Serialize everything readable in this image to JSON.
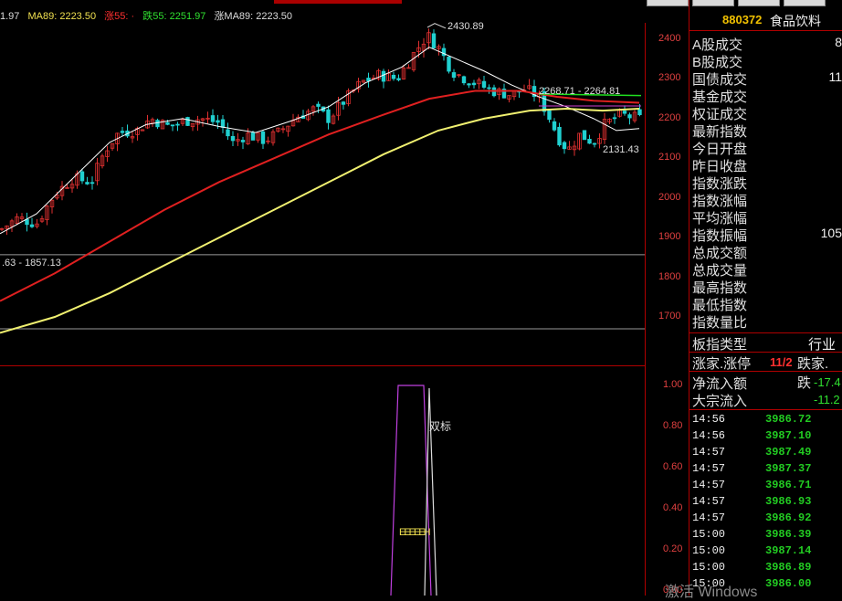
{
  "legend": {
    "ma_a": "1.97",
    "ma89": "MA89: 2223.50",
    "zhang55": "涨55: ·",
    "die55": "跌55: 2251.97",
    "zhang_ma89": "涨MA89: 2223.50"
  },
  "chart_data": {
    "type": "candlestick",
    "y_axis_ticks": [
      2400,
      2300,
      2200,
      2100,
      2000,
      1900,
      1800,
      1700
    ],
    "y_axis_labels": [
      "2400",
      "2300",
      "2200",
      "2100",
      "2000",
      "1900",
      "1800",
      "1700"
    ],
    "annotations": {
      "high": "2430.89",
      "range": "2268.71 - 2264.81",
      "low": "2131.43",
      "left_range": ".63 - 1857.13"
    },
    "colors": {
      "up": "#e03030",
      "down": "#20d0d0",
      "ma_short": "#ffffff",
      "ma_mid": "#e02020",
      "ma_long": "#f0f070",
      "green_line": "#20e020",
      "magenta_line": "#d040d0"
    }
  },
  "indicator": {
    "y_axis_labels": [
      "1.00",
      "0.80",
      "0.60",
      "0.40",
      "0.20",
      "0.00"
    ],
    "label_shuangbiao": "双标",
    "label_eee": "EEEEEH"
  },
  "panel": {
    "code": "880372",
    "name": "食品饮料",
    "rows": [
      {
        "label": "A股成交",
        "value": "8"
      },
      {
        "label": "B股成交",
        "value": ""
      },
      {
        "label": "国债成交",
        "value": "11"
      },
      {
        "label": "基金成交",
        "value": ""
      },
      {
        "label": "权证成交",
        "value": ""
      },
      {
        "label": "最新指数",
        "value": ""
      },
      {
        "label": "今日开盘",
        "value": ""
      },
      {
        "label": "昨日收盘",
        "value": ""
      },
      {
        "label": "指数涨跌",
        "value": ""
      },
      {
        "label": "指数涨幅",
        "value": ""
      },
      {
        "label": "平均涨幅",
        "value": ""
      },
      {
        "label": "指数振幅",
        "value": "105"
      },
      {
        "label": "总成交额",
        "value": ""
      },
      {
        "label": "总成交量",
        "value": ""
      },
      {
        "label": "最高指数",
        "value": ""
      },
      {
        "label": "最低指数",
        "value": ""
      },
      {
        "label": "指数量比",
        "value": ""
      }
    ],
    "block_type_label": "板指类型",
    "block_type_value": "行业",
    "up_limit_label": "涨家.涨停",
    "up_limit_value": "11/2",
    "down_label": "跌家.跌",
    "net_inflow_label": "净流入额",
    "net_inflow_value": "-17.4",
    "bulk_inflow_label": "大宗流入",
    "bulk_inflow_value": "-11.2",
    "ticks": [
      {
        "time": "14:56",
        "price": "3986.72"
      },
      {
        "time": "14:56",
        "price": "3987.10"
      },
      {
        "time": "14:57",
        "price": "3987.49"
      },
      {
        "time": "14:57",
        "price": "3987.37"
      },
      {
        "time": "14:57",
        "price": "3986.71"
      },
      {
        "time": "14:57",
        "price": "3986.93"
      },
      {
        "time": "14:57",
        "price": "3986.92"
      },
      {
        "time": "15:00",
        "price": "3986.39"
      },
      {
        "time": "15:00",
        "price": "3987.14"
      },
      {
        "time": "15:00",
        "price": "3986.89"
      },
      {
        "time": "15:00",
        "price": "3986.00"
      }
    ]
  },
  "watermark": "激活 Windows"
}
